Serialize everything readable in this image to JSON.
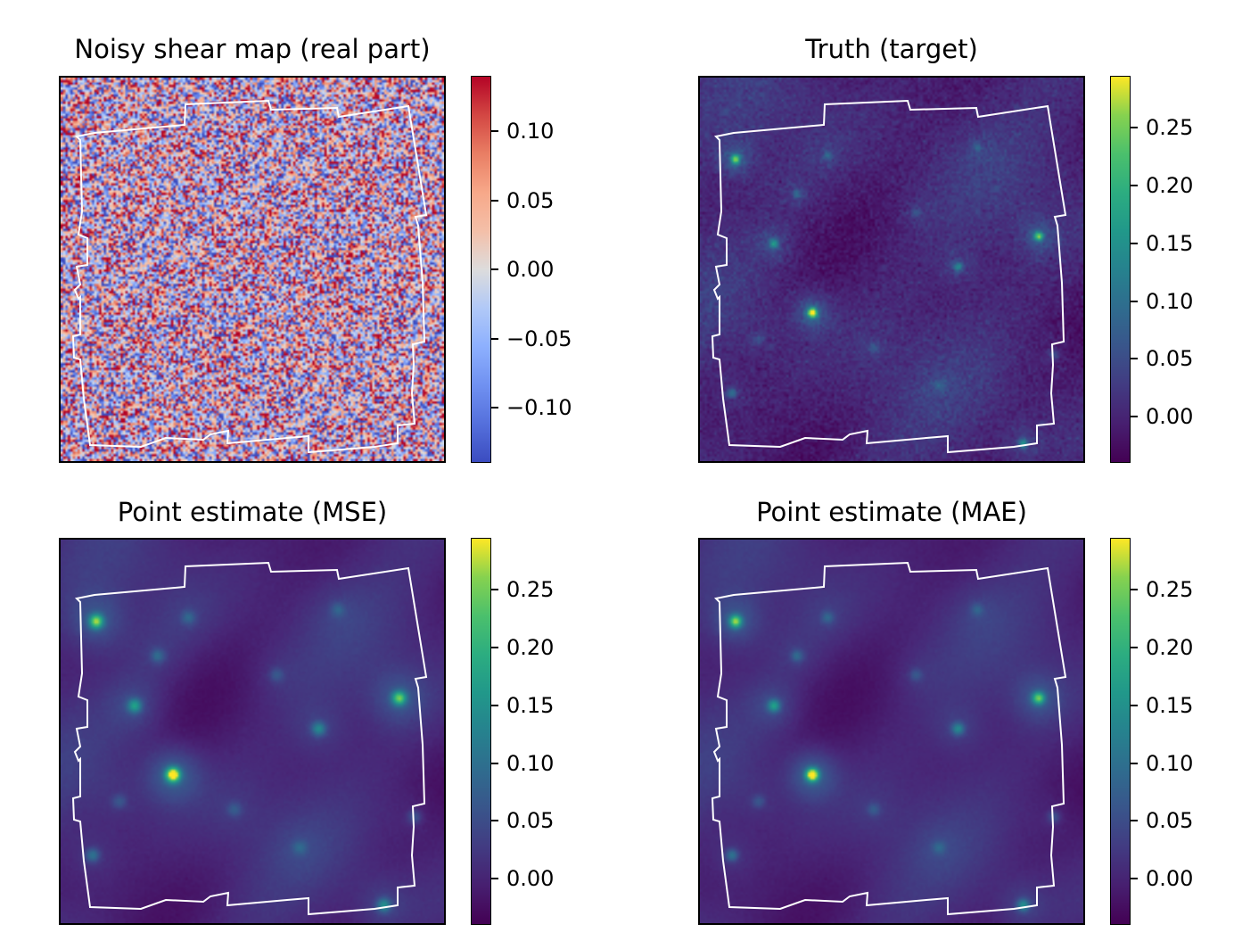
{
  "chart_data": [
    {
      "type": "heatmap",
      "id": "noisy",
      "title": "Noisy shear map (real part)",
      "colormap": "coolwarm",
      "vmin": -0.14,
      "vmax": 0.14,
      "colorbar_ticks": [
        {
          "value": 0.1,
          "label": "0.10"
        },
        {
          "value": 0.05,
          "label": "0.05"
        },
        {
          "value": 0.0,
          "label": "0.00"
        },
        {
          "value": -0.05,
          "label": "−0.05"
        },
        {
          "value": -0.1,
          "label": "−0.10"
        }
      ],
      "overlay": "survey footprint outline (white)"
    },
    {
      "type": "heatmap",
      "id": "truth",
      "title": "Truth (target)",
      "colormap": "viridis",
      "vmin": -0.04,
      "vmax": 0.295,
      "colorbar_ticks": [
        {
          "value": 0.25,
          "label": "0.25"
        },
        {
          "value": 0.2,
          "label": "0.20"
        },
        {
          "value": 0.15,
          "label": "0.15"
        },
        {
          "value": 0.1,
          "label": "0.10"
        },
        {
          "value": 0.05,
          "label": "0.05"
        },
        {
          "value": 0.0,
          "label": "0.00"
        }
      ],
      "overlay": "survey footprint outline (white)"
    },
    {
      "type": "heatmap",
      "id": "mse",
      "title": "Point estimate (MSE)",
      "colormap": "viridis",
      "vmin": -0.04,
      "vmax": 0.295,
      "colorbar_ticks": [
        {
          "value": 0.25,
          "label": "0.25"
        },
        {
          "value": 0.2,
          "label": "0.20"
        },
        {
          "value": 0.15,
          "label": "0.15"
        },
        {
          "value": 0.1,
          "label": "0.10"
        },
        {
          "value": 0.05,
          "label": "0.05"
        },
        {
          "value": 0.0,
          "label": "0.00"
        }
      ],
      "overlay": "survey footprint outline (white)"
    },
    {
      "type": "heatmap",
      "id": "mae",
      "title": "Point estimate (MAE)",
      "colormap": "viridis",
      "vmin": -0.04,
      "vmax": 0.295,
      "colorbar_ticks": [
        {
          "value": 0.25,
          "label": "0.25"
        },
        {
          "value": 0.2,
          "label": "0.20"
        },
        {
          "value": 0.15,
          "label": "0.15"
        },
        {
          "value": 0.1,
          "label": "0.10"
        },
        {
          "value": 0.05,
          "label": "0.05"
        },
        {
          "value": 0.0,
          "label": "0.00"
        }
      ],
      "overlay": "survey footprint outline (white)"
    }
  ]
}
